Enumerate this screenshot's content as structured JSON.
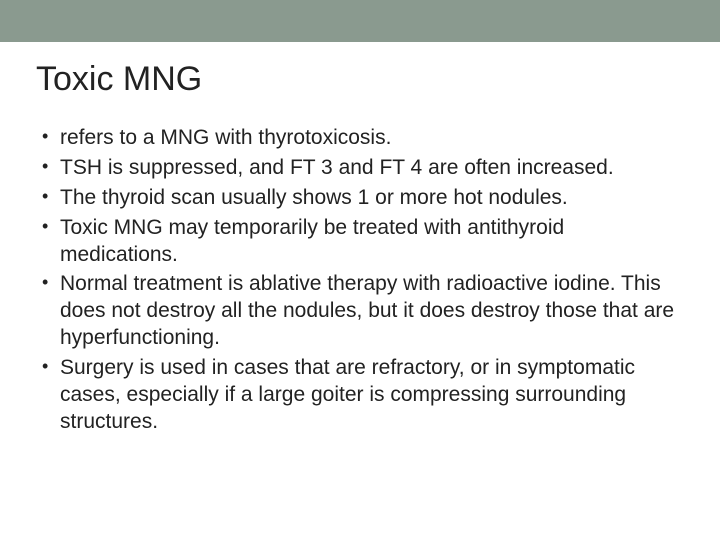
{
  "slide": {
    "title": "Toxic MNG",
    "top_bar_color": "#8a9a8f",
    "background_color": "#ffffff",
    "title_fontsize": 34,
    "body_fontsize": 21,
    "text_color": "#222222",
    "bullets": [
      "refers to a MNG with thyrotoxicosis.",
      "TSH is suppressed, and FT 3 and FT 4 are often increased.",
      "The thyroid scan usually shows 1  or more hot nodules.",
      "Toxic MNG may temporarily be treated with antithyroid medications.",
      "Normal treatment is ablative therapy with radioactive iodine. This does not destroy all the nodules, but it does destroy those that are hyperfunctioning.",
      "Surgery is used in cases that are refractory, or in symptomatic cases, especially if a large goiter is compressing surrounding structures."
    ]
  }
}
